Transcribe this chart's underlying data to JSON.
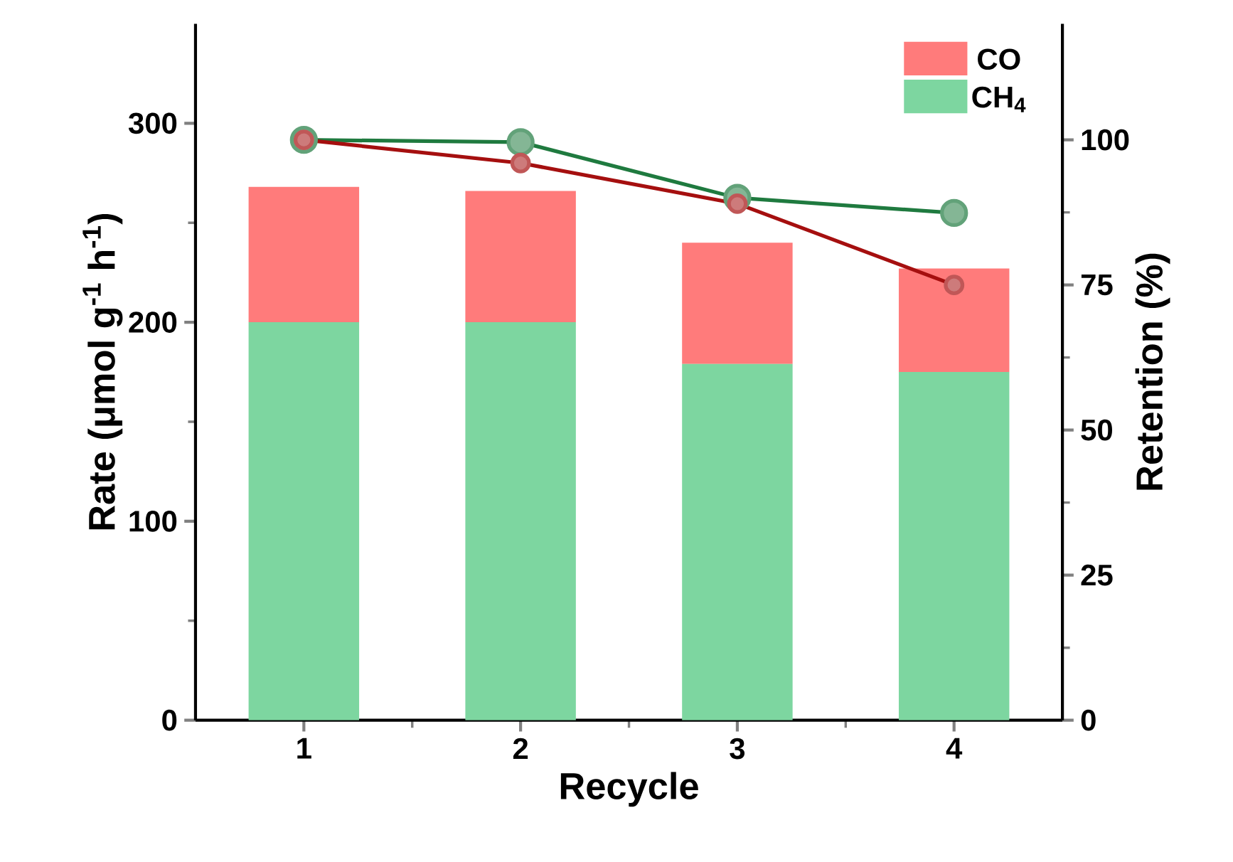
{
  "chart_data": {
    "type": "bar",
    "stacked": true,
    "categories": [
      "1",
      "2",
      "3",
      "4"
    ],
    "xlabel": "Recycle",
    "ylabel": "Rate (μmol g$^{-1}$ h$^{-1}$)",
    "y2label": "Retention (%)",
    "ylim": [
      0,
      350
    ],
    "yticks": [
      0,
      100,
      200,
      300
    ],
    "y2lim": [
      0,
      120
    ],
    "y2ticks": [
      0,
      25,
      50,
      75,
      100
    ],
    "legend": "top right",
    "grid": false,
    "marker": "circle",
    "line_style": "solid",
    "series": [
      {
        "name": "CH$_{4}$",
        "color": "#7dd6a0",
        "values": [
          200,
          200,
          179,
          175
        ]
      },
      {
        "name": "CO",
        "color": "#ff7b7b",
        "values": [
          68,
          66,
          61,
          52
        ]
      },
      {
        "type": "line",
        "axis": "y2",
        "color": "#1f7a3f",
        "values": [
          100,
          99.6,
          90,
          87.4
        ]
      },
      {
        "type": "line",
        "axis": "y2",
        "color": "#a50f0f",
        "values": [
          100,
          96,
          89,
          75
        ]
      }
    ]
  }
}
